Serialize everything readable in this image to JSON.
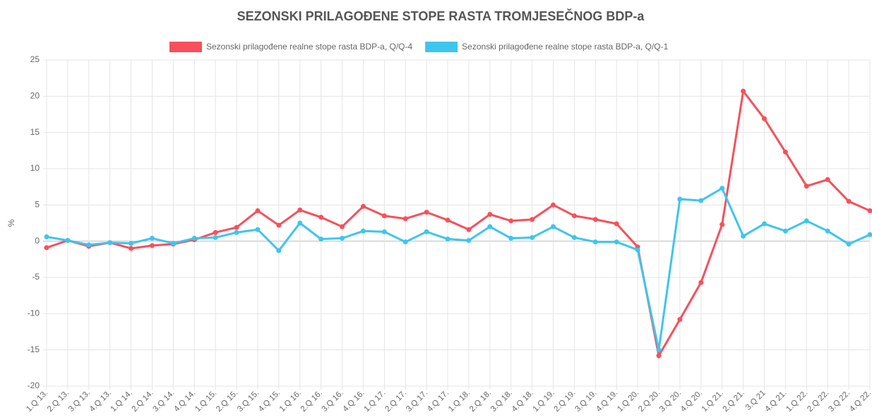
{
  "chart_data": {
    "type": "line",
    "title": "SEZONSKI PRILAGOĐENE STOPE RASTA TROMJESEČNOG BDP-a",
    "y_label": "%",
    "categories": [
      "1.Q 13.",
      "2.Q 13.",
      "3.Q 13.",
      "4.Q 13.",
      "1.Q 14.",
      "2.Q 14.",
      "3.Q 14.",
      "4.Q 14.",
      "1.Q 15.",
      "2.Q 15.",
      "3.Q 15.",
      "4.Q 15.",
      "1.Q 16.",
      "2.Q 16.",
      "3.Q 16.",
      "4.Q 16.",
      "1.Q 17.",
      "2.Q 17.",
      "3.Q 17.",
      "4.Q 17.",
      "1.Q 18.",
      "2.Q 18.",
      "3.Q 18.",
      "4.Q 18.",
      "1.Q 19.",
      "2.Q 19.",
      "3.Q 19.",
      "4.Q 19.",
      "1.Q 20.",
      "2.Q 20.",
      "3.Q 20.",
      "4.Q 20.",
      "1.Q 21.",
      "2.Q 21.",
      "3.Q 21",
      "4.Q 21.",
      "1.Q 22.",
      "2.Q 22.",
      "3.Q 22.",
      "4.Q 22."
    ],
    "series": [
      {
        "name": "Sezonski prilagođene realne stope rasta BDP-a, Q/Q-4",
        "color": "#f7505c",
        "values": [
          -0.9,
          0.1,
          -0.7,
          -0.2,
          -1.0,
          -0.6,
          -0.4,
          0.2,
          1.2,
          1.9,
          4.2,
          2.2,
          4.3,
          3.3,
          2.0,
          4.8,
          3.5,
          3.1,
          4.0,
          2.9,
          1.6,
          3.7,
          2.8,
          3.0,
          5.0,
          3.5,
          3.0,
          2.4,
          -0.8,
          -15.8,
          -10.8,
          -5.7,
          2.3,
          20.7,
          16.9,
          12.3,
          7.6,
          8.5,
          5.5,
          4.2
        ]
      },
      {
        "name": "Sezonski prilagođene realne stope rasta BDP-a, Q/Q-1",
        "color": "#3ec5ee",
        "values": [
          0.6,
          0.1,
          -0.5,
          -0.2,
          -0.3,
          0.4,
          -0.3,
          0.4,
          0.5,
          1.2,
          1.6,
          -1.3,
          2.5,
          0.3,
          0.4,
          1.4,
          1.3,
          -0.1,
          1.3,
          0.3,
          0.1,
          2.0,
          0.4,
          0.5,
          2.0,
          0.5,
          -0.1,
          -0.1,
          -1.2,
          -15.0,
          5.8,
          5.6,
          7.3,
          0.7,
          2.4,
          1.4,
          2.8,
          1.4,
          -0.4,
          0.9
        ]
      }
    ],
    "ylim": [
      -20,
      25
    ],
    "yticks": [
      -20,
      -15,
      -10,
      -5,
      0,
      5,
      10,
      15,
      20,
      25
    ],
    "grid": true,
    "legend": "top"
  }
}
